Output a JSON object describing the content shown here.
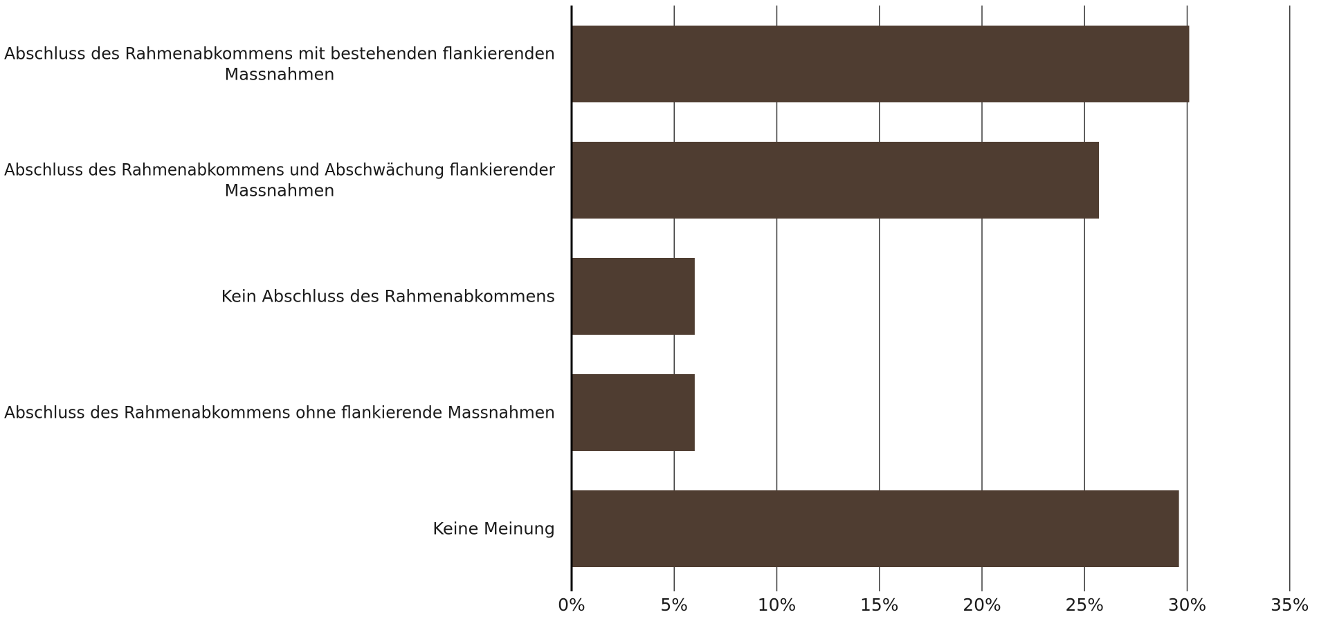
{
  "chart_data": {
    "type": "bar",
    "orientation": "horizontal",
    "title": "",
    "xlabel": "",
    "ylabel": "",
    "categories": [
      [
        "Abschluss des Rahmenabkommens mit bestehenden flankierenden",
        "Massnahmen"
      ],
      [
        "Abschluss des Rahmenabkommens und Abschwächung flankierender",
        "Massnahmen"
      ],
      [
        "Kein Abschluss des Rahmenabkommens"
      ],
      [
        "Abschluss des Rahmenabkommens ohne flankierende Massnahmen"
      ],
      [
        "Keine Meinung"
      ]
    ],
    "values": [
      30.1,
      25.7,
      6.0,
      6.0,
      29.6
    ],
    "xlim": [
      0,
      35
    ],
    "ticks": [
      0,
      5,
      10,
      15,
      20,
      25,
      30,
      35
    ],
    "tick_labels": [
      "0%",
      "5%",
      "10%",
      "15%",
      "20%",
      "25%",
      "30%",
      "35%"
    ],
    "grid": "vertical",
    "legend": "none",
    "colors": {
      "bar": "#4f3d31",
      "grid": "#3c3c3c",
      "axis": "#000000"
    }
  }
}
